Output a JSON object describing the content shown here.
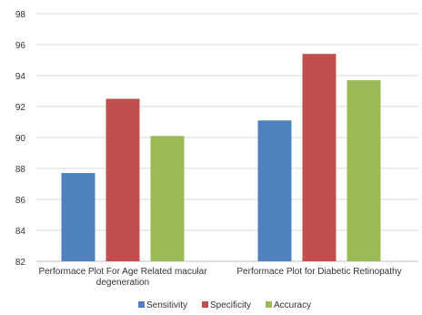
{
  "chart_data": {
    "type": "bar",
    "categories": [
      [
        "Performace Plot For Age Related macular",
        "degeneration"
      ],
      [
        "Performace Plot for Diabetic Retinopathy"
      ]
    ],
    "series": [
      {
        "name": "Sensitivity",
        "color": "#4f81bd",
        "values": [
          87.7,
          91.1
        ]
      },
      {
        "name": "Specificity",
        "color": "#c0504d",
        "values": [
          92.5,
          95.4
        ]
      },
      {
        "name": "Accuracy",
        "color": "#9bbb59",
        "values": [
          90.1,
          93.7
        ]
      }
    ],
    "ylim": [
      82,
      98
    ],
    "yticks": [
      82,
      84,
      86,
      88,
      90,
      92,
      94,
      96,
      98
    ],
    "grid": true,
    "legend": "bottom"
  }
}
